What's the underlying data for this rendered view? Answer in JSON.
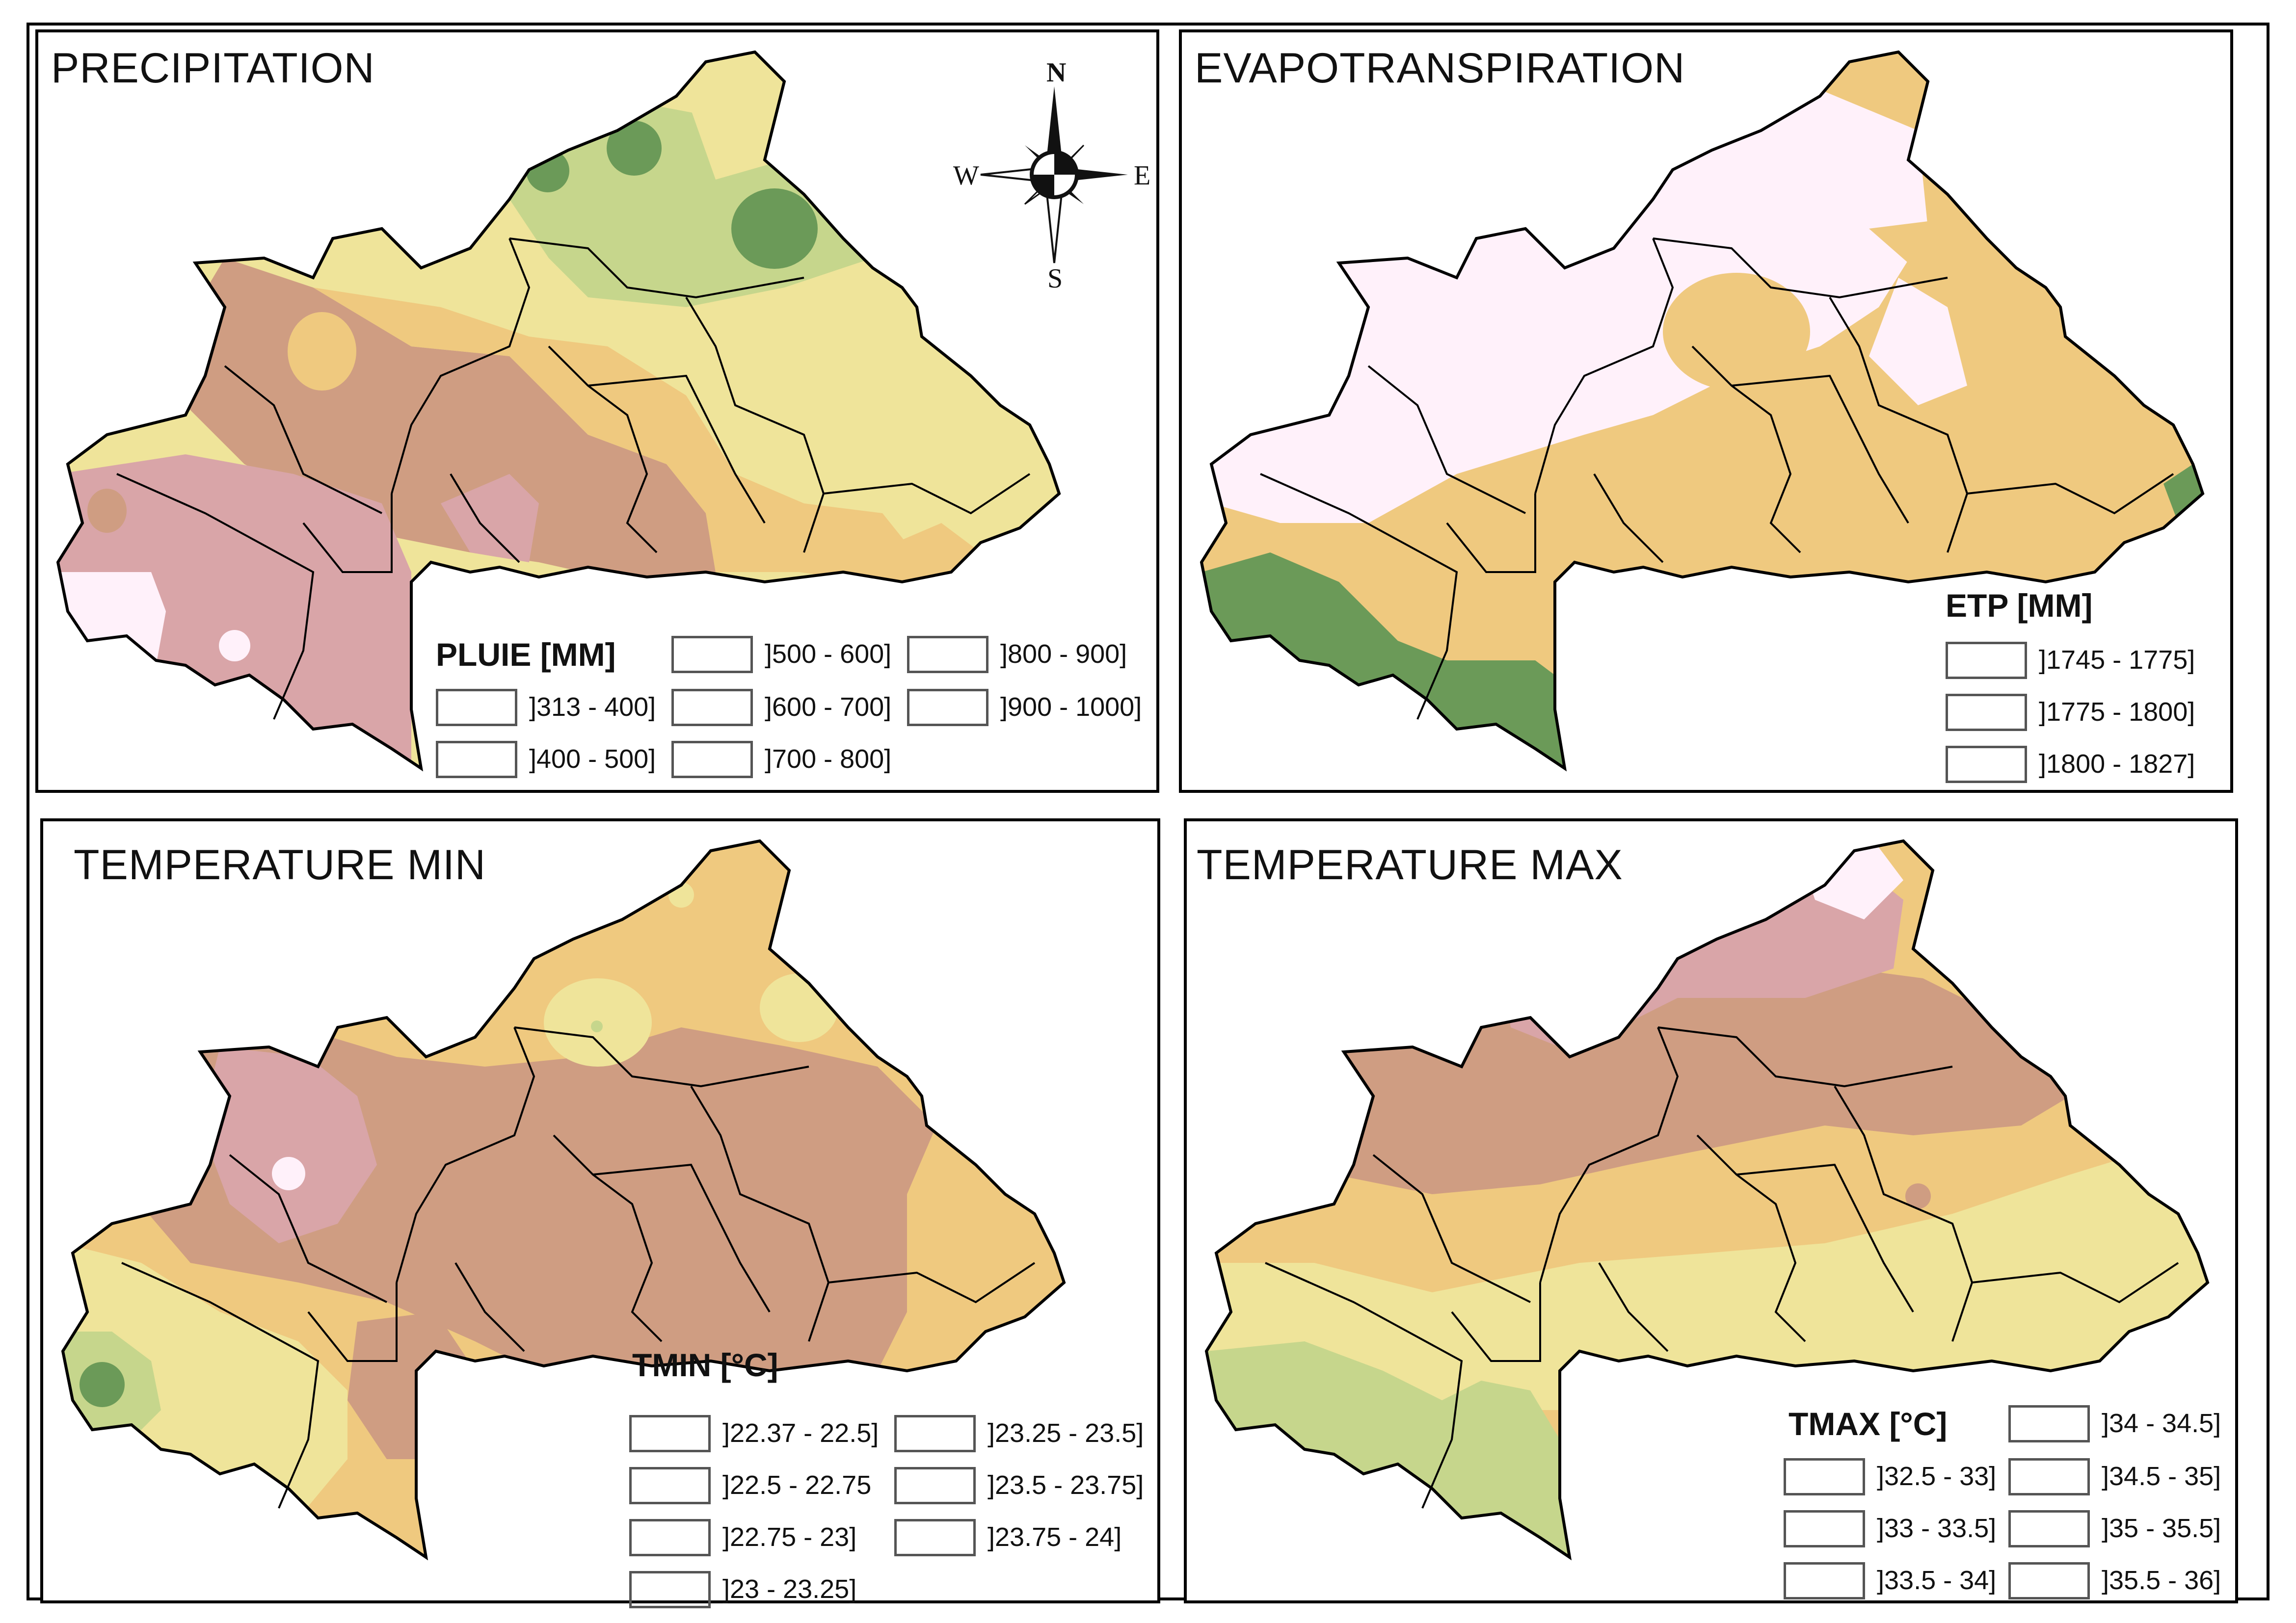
{
  "panels": {
    "precip": {
      "title": "PRECIPITATION",
      "legend_title": "PLUIE [MM]",
      "classes": [
        {
          "label": "]313 - 400]",
          "color": "#6b9a58"
        },
        {
          "label": "]400 - 500]",
          "color": "#c6d68c"
        },
        {
          "label": "]500 - 600]",
          "color": "#efe49a"
        },
        {
          "label": "]600 - 700]",
          "color": "#efc97f"
        },
        {
          "label": "]700 - 800]",
          "color": "#cf9d82"
        },
        {
          "label": "]800 - 900]",
          "color": "#d9a5a8"
        },
        {
          "label": "]900 - 1000]",
          "color": "#fff1fa"
        }
      ]
    },
    "etp": {
      "title": "EVAPOTRANSPIRATION",
      "legend_title": "ETP [MM]",
      "classes": [
        {
          "label": "]1745 - 1775]",
          "color": "#6b9a58"
        },
        {
          "label": "]1775 - 1800]",
          "color": "#efc97f"
        },
        {
          "label": "]1800 - 1827]",
          "color": "#fff1fa"
        }
      ]
    },
    "tmin": {
      "title": "TEMPERATURE MIN",
      "legend_title": "TMIN [°C]",
      "classes": [
        {
          "label": "]22.37 - 22.5]",
          "color": "#6b9a58"
        },
        {
          "label": "]22.5 - 22.75",
          "color": "#c6d68c"
        },
        {
          "label": "]22.75 - 23]",
          "color": "#efe49a"
        },
        {
          "label": "]23 - 23.25]",
          "color": "#efc97f"
        },
        {
          "label": "]23.25 - 23.5]",
          "color": "#cf9d82"
        },
        {
          "label": "]23.5 - 23.75]",
          "color": "#d9a5a8"
        },
        {
          "label": "]23.75 - 24]",
          "color": "#fff1fa"
        }
      ]
    },
    "tmax": {
      "title": "TEMPERATURE MAX",
      "legend_title": "TMAX [°C]",
      "classes": [
        {
          "label": "]32.5 - 33]",
          "color": "#6b9a58"
        },
        {
          "label": "]33 - 33.5]",
          "color": "#c6d68c"
        },
        {
          "label": "]33.5 - 34]",
          "color": "#efe49a"
        },
        {
          "label": "]34 - 34.5]",
          "color": "#efc97f"
        },
        {
          "label": "]34.5 - 35]",
          "color": "#cf9d82"
        },
        {
          "label": "]35 - 35.5]",
          "color": "#d9a5a8"
        },
        {
          "label": "]35.5 - 36]",
          "color": "#fff1fa"
        }
      ]
    }
  },
  "compass": {
    "n": "N",
    "s": "S",
    "e": "E",
    "w": "W",
    "icon": "compass-rose-icon"
  }
}
